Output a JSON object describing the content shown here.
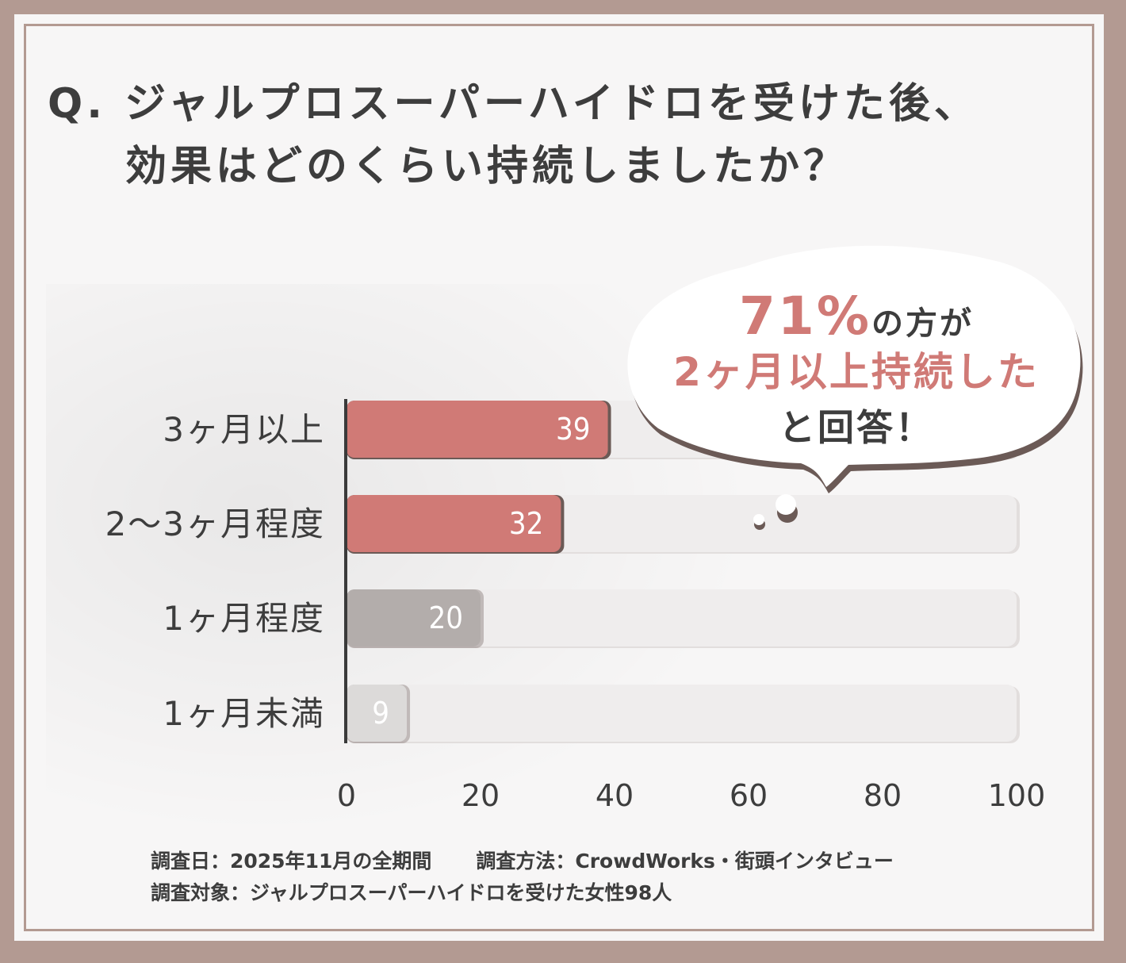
{
  "title": {
    "line1": "Q. ジャルプロスーパーハイドロを受けた後、",
    "line2": "効果はどのくらい持続しましたか？"
  },
  "callout": {
    "pct": "71%",
    "suffix": "の方が",
    "line2": "2ヶ月以上持続した",
    "line3": "と回答！"
  },
  "footer": {
    "date": "調査日：2025年11月の全期間",
    "method": "調査方法：CrowdWorks・街頭インタビュー",
    "target": "調査対象：ジャルプロスーパーハイドロを受けた女性98人"
  },
  "colors": {
    "highlight": "#d07a76",
    "highlight_shadow": "#6b5a56",
    "mid": "#b3adab",
    "light": "#dcdad9",
    "track": "#efeded",
    "text": "#3d3d3d"
  },
  "chart_data": {
    "type": "bar",
    "orientation": "horizontal",
    "categories": [
      "3ヶ月以上",
      "2〜3ヶ月程度",
      "1ヶ月程度",
      "1ヶ月未満"
    ],
    "values": [
      39,
      32,
      20,
      9
    ],
    "data_labels": [
      "39",
      "32",
      "20",
      "9"
    ],
    "xlim": [
      0,
      100
    ],
    "xticks": [
      0,
      20,
      40,
      60,
      80,
      100
    ],
    "xtick_labels": [
      "0",
      "20",
      "40",
      "60",
      "80",
      "100"
    ],
    "grid": false,
    "legend": "none"
  }
}
